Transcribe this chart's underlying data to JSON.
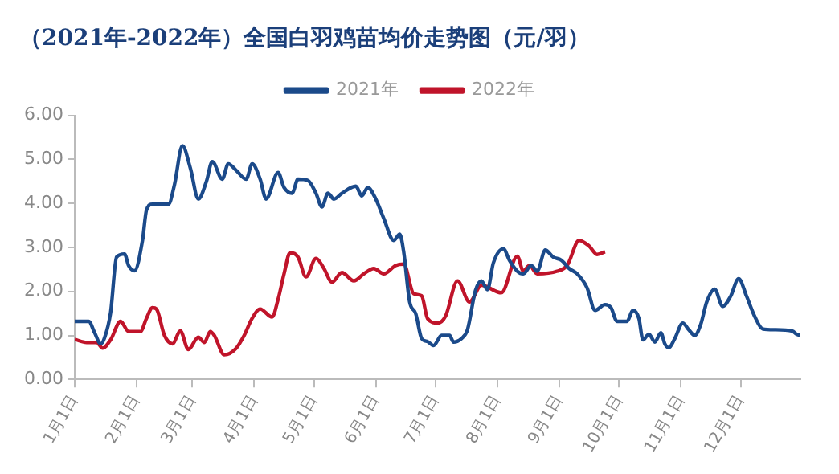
{
  "chart_data": {
    "type": "line",
    "title": "（2021年-2022年）全国白羽鸡苗均价走势图（元/羽）",
    "xlim": [
      "--01-01",
      "--12-31"
    ],
    "xticks": [
      {
        "value": "--01-01",
        "label": "1月1日"
      },
      {
        "value": "--02-01",
        "label": "2月1日"
      },
      {
        "value": "--03-01",
        "label": "3月1日"
      },
      {
        "value": "--04-01",
        "label": "4月1日"
      },
      {
        "value": "--05-01",
        "label": "5月1日"
      },
      {
        "value": "--06-01",
        "label": "6月1日"
      },
      {
        "value": "--07-01",
        "label": "7月1日"
      },
      {
        "value": "--08-01",
        "label": "8月1日"
      },
      {
        "value": "--09-01",
        "label": "9月1日"
      },
      {
        "value": "--10-01",
        "label": "10月1日"
      },
      {
        "value": "--11-01",
        "label": "11月1日"
      },
      {
        "value": "--12-01",
        "label": "12月1日"
      }
    ],
    "ylim": [
      0,
      6
    ],
    "yticks": [
      {
        "value": 0,
        "label": "0.00"
      },
      {
        "value": 1,
        "label": "1.00"
      },
      {
        "value": 2,
        "label": "2.00"
      },
      {
        "value": 3,
        "label": "3.00"
      },
      {
        "value": 4,
        "label": "4.00"
      },
      {
        "value": 5,
        "label": "5.00"
      },
      {
        "value": 6,
        "label": "6.00"
      }
    ],
    "grid": false,
    "legend": "top",
    "marker": "none",
    "line_style": "solid",
    "series": [
      {
        "name": "2021年",
        "color": "#1b4a8a",
        "x": [
          "--01-01",
          "--01-08",
          "--01-11",
          "--01-14",
          "--01-16",
          "--01-19",
          "--01-22",
          "--01-26",
          "--01-28",
          "--01-31",
          "--02-04",
          "--02-06",
          "--02-09",
          "--02-17",
          "--02-20",
          "--02-24",
          "--02-28",
          "--03-04",
          "--03-08",
          "--03-11",
          "--03-16",
          "--03-19",
          "--03-23",
          "--03-28",
          "--03-31",
          "--04-04",
          "--04-07",
          "--04-13",
          "--04-16",
          "--04-20",
          "--04-23",
          "--04-28",
          "--05-02",
          "--05-05",
          "--05-08",
          "--05-11",
          "--05-15",
          "--05-22",
          "--05-25",
          "--05-28",
          "--06-01",
          "--06-05",
          "--06-10",
          "--06-13",
          "--06-15",
          "--06-18",
          "--06-21",
          "--06-24",
          "--06-27",
          "--06-30",
          "--07-04",
          "--07-08",
          "--07-10",
          "--07-14",
          "--07-17",
          "--07-21",
          "--07-24",
          "--07-27",
          "--07-30",
          "--08-04",
          "--08-07",
          "--08-11",
          "--08-14",
          "--08-18",
          "--08-21",
          "--08-25",
          "--08-29",
          "--09-02",
          "--09-06",
          "--09-10",
          "--09-15",
          "--09-19",
          "--09-24",
          "--09-27",
          "--09-30",
          "--10-05",
          "--10-08",
          "--10-11",
          "--10-13",
          "--10-16",
          "--10-19",
          "--10-22",
          "--10-24",
          "--10-26",
          "--10-29",
          "--11-02",
          "--11-05",
          "--11-08",
          "--11-11",
          "--11-14",
          "--11-18",
          "--11-22",
          "--11-26",
          "--11-30",
          "--12-04",
          "--12-08",
          "--12-12",
          "--12-18",
          "--12-27",
          "--12-29",
          "--12-31"
        ],
        "values": [
          1.32,
          1.32,
          1.06,
          0.81,
          0.95,
          1.52,
          2.78,
          2.85,
          2.59,
          2.47,
          3.16,
          3.85,
          3.98,
          3.98,
          4.42,
          5.31,
          4.8,
          4.1,
          4.49,
          4.95,
          4.55,
          4.9,
          4.75,
          4.55,
          4.9,
          4.55,
          4.1,
          4.7,
          4.36,
          4.23,
          4.55,
          4.52,
          4.23,
          3.92,
          4.23,
          4.1,
          4.23,
          4.39,
          4.17,
          4.36,
          4.1,
          3.66,
          3.16,
          3.3,
          2.9,
          1.76,
          1.5,
          0.93,
          0.86,
          0.77,
          1.0,
          1.0,
          0.85,
          0.93,
          1.13,
          2.02,
          2.24,
          2.04,
          2.65,
          2.97,
          2.71,
          2.46,
          2.4,
          2.59,
          2.46,
          2.94,
          2.78,
          2.71,
          2.52,
          2.4,
          2.08,
          1.57,
          1.7,
          1.63,
          1.32,
          1.32,
          1.57,
          1.38,
          0.9,
          1.03,
          0.85,
          1.06,
          0.81,
          0.72,
          0.93,
          1.28,
          1.13,
          1.0,
          1.25,
          1.76,
          2.05,
          1.66,
          1.89,
          2.29,
          1.89,
          1.44,
          1.15,
          1.13,
          1.1,
          1.03,
          1.0
        ]
      },
      {
        "name": "2022年",
        "color": "#c0142a",
        "x": [
          "--01-01",
          "--01-07",
          "--01-12",
          "--01-15",
          "--01-19",
          "--01-24",
          "--01-28",
          "--02-03",
          "--02-06",
          "--02-09",
          "--02-11",
          "--02-15",
          "--02-19",
          "--02-23",
          "--02-27",
          "--03-04",
          "--03-07",
          "--03-10",
          "--03-12",
          "--03-17",
          "--03-23",
          "--03-27",
          "--03-31",
          "--04-04",
          "--04-10",
          "--04-13",
          "--04-16",
          "--04-19",
          "--04-23",
          "--04-27",
          "--05-02",
          "--05-06",
          "--05-10",
          "--05-15",
          "--05-21",
          "--05-26",
          "--05-31",
          "--06-05",
          "--06-11",
          "--06-15",
          "--06-20",
          "--06-24",
          "--06-27",
          "--07-02",
          "--07-06",
          "--07-12",
          "--07-18",
          "--07-24",
          "--08-03",
          "--08-11",
          "--08-14",
          "--08-17",
          "--08-21",
          "--08-31",
          "--09-05",
          "--09-11",
          "--09-16",
          "--09-20",
          "--09-24"
        ],
        "values": [
          0.91,
          0.84,
          0.84,
          0.71,
          0.9,
          1.32,
          1.09,
          1.09,
          1.39,
          1.63,
          1.6,
          1.0,
          0.81,
          1.1,
          0.68,
          0.96,
          0.84,
          1.09,
          1.0,
          0.56,
          0.71,
          1.0,
          1.39,
          1.6,
          1.42,
          1.82,
          2.4,
          2.88,
          2.78,
          2.33,
          2.75,
          2.52,
          2.21,
          2.43,
          2.24,
          2.4,
          2.52,
          2.4,
          2.59,
          2.62,
          1.95,
          1.9,
          1.38,
          1.28,
          1.44,
          2.24,
          1.76,
          2.14,
          1.97,
          2.8,
          2.46,
          2.59,
          2.4,
          2.46,
          2.59,
          3.16,
          3.03,
          2.84,
          2.9
        ]
      }
    ]
  }
}
